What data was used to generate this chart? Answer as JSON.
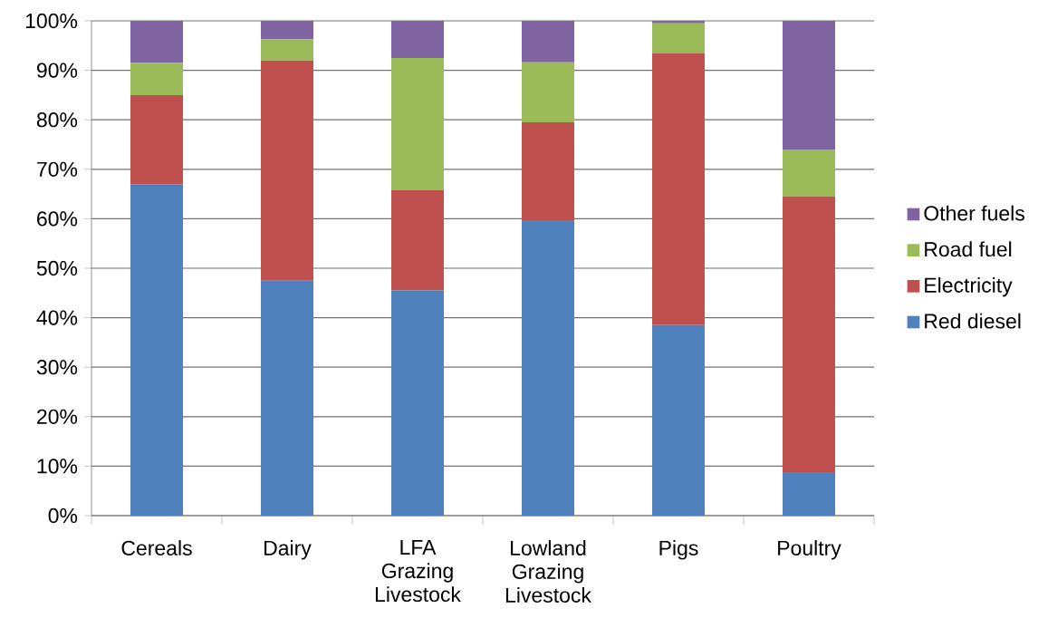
{
  "chart_data": {
    "type": "bar",
    "stacked": true,
    "categories": [
      "Cereals",
      "Dairy",
      "LFA Grazing Livestock",
      "Lowland Grazing Livestock",
      "Pigs",
      "Poultry"
    ],
    "series": [
      {
        "name": "Red diesel",
        "color": "#4f81bd",
        "values": [
          67,
          47.5,
          45.5,
          59.7,
          38.5,
          8.8
        ]
      },
      {
        "name": "Electricity",
        "color": "#c0504d",
        "values": [
          18,
          44.5,
          20.3,
          19.8,
          55,
          55.7
        ]
      },
      {
        "name": "Road fuel",
        "color": "#9bbb59",
        "values": [
          6.5,
          4.3,
          26.7,
          12.1,
          6,
          9.5
        ]
      },
      {
        "name": "Other fuels",
        "color": "#8064a2",
        "values": [
          8.5,
          3.7,
          7.5,
          8.4,
          0.5,
          26
        ]
      }
    ],
    "ylim": [
      0,
      100
    ],
    "yticks": [
      {
        "value": 0,
        "label": "0%"
      },
      {
        "value": 10,
        "label": "10%"
      },
      {
        "value": 20,
        "label": "20%"
      },
      {
        "value": 30,
        "label": "30%"
      },
      {
        "value": 40,
        "label": "40%"
      },
      {
        "value": 50,
        "label": "50%"
      },
      {
        "value": 60,
        "label": "60%"
      },
      {
        "value": 70,
        "label": "70%"
      },
      {
        "value": 80,
        "label": "80%"
      },
      {
        "value": 90,
        "label": "90%"
      },
      {
        "value": 100,
        "label": "100%"
      }
    ],
    "grid": "y",
    "legend": "right"
  }
}
